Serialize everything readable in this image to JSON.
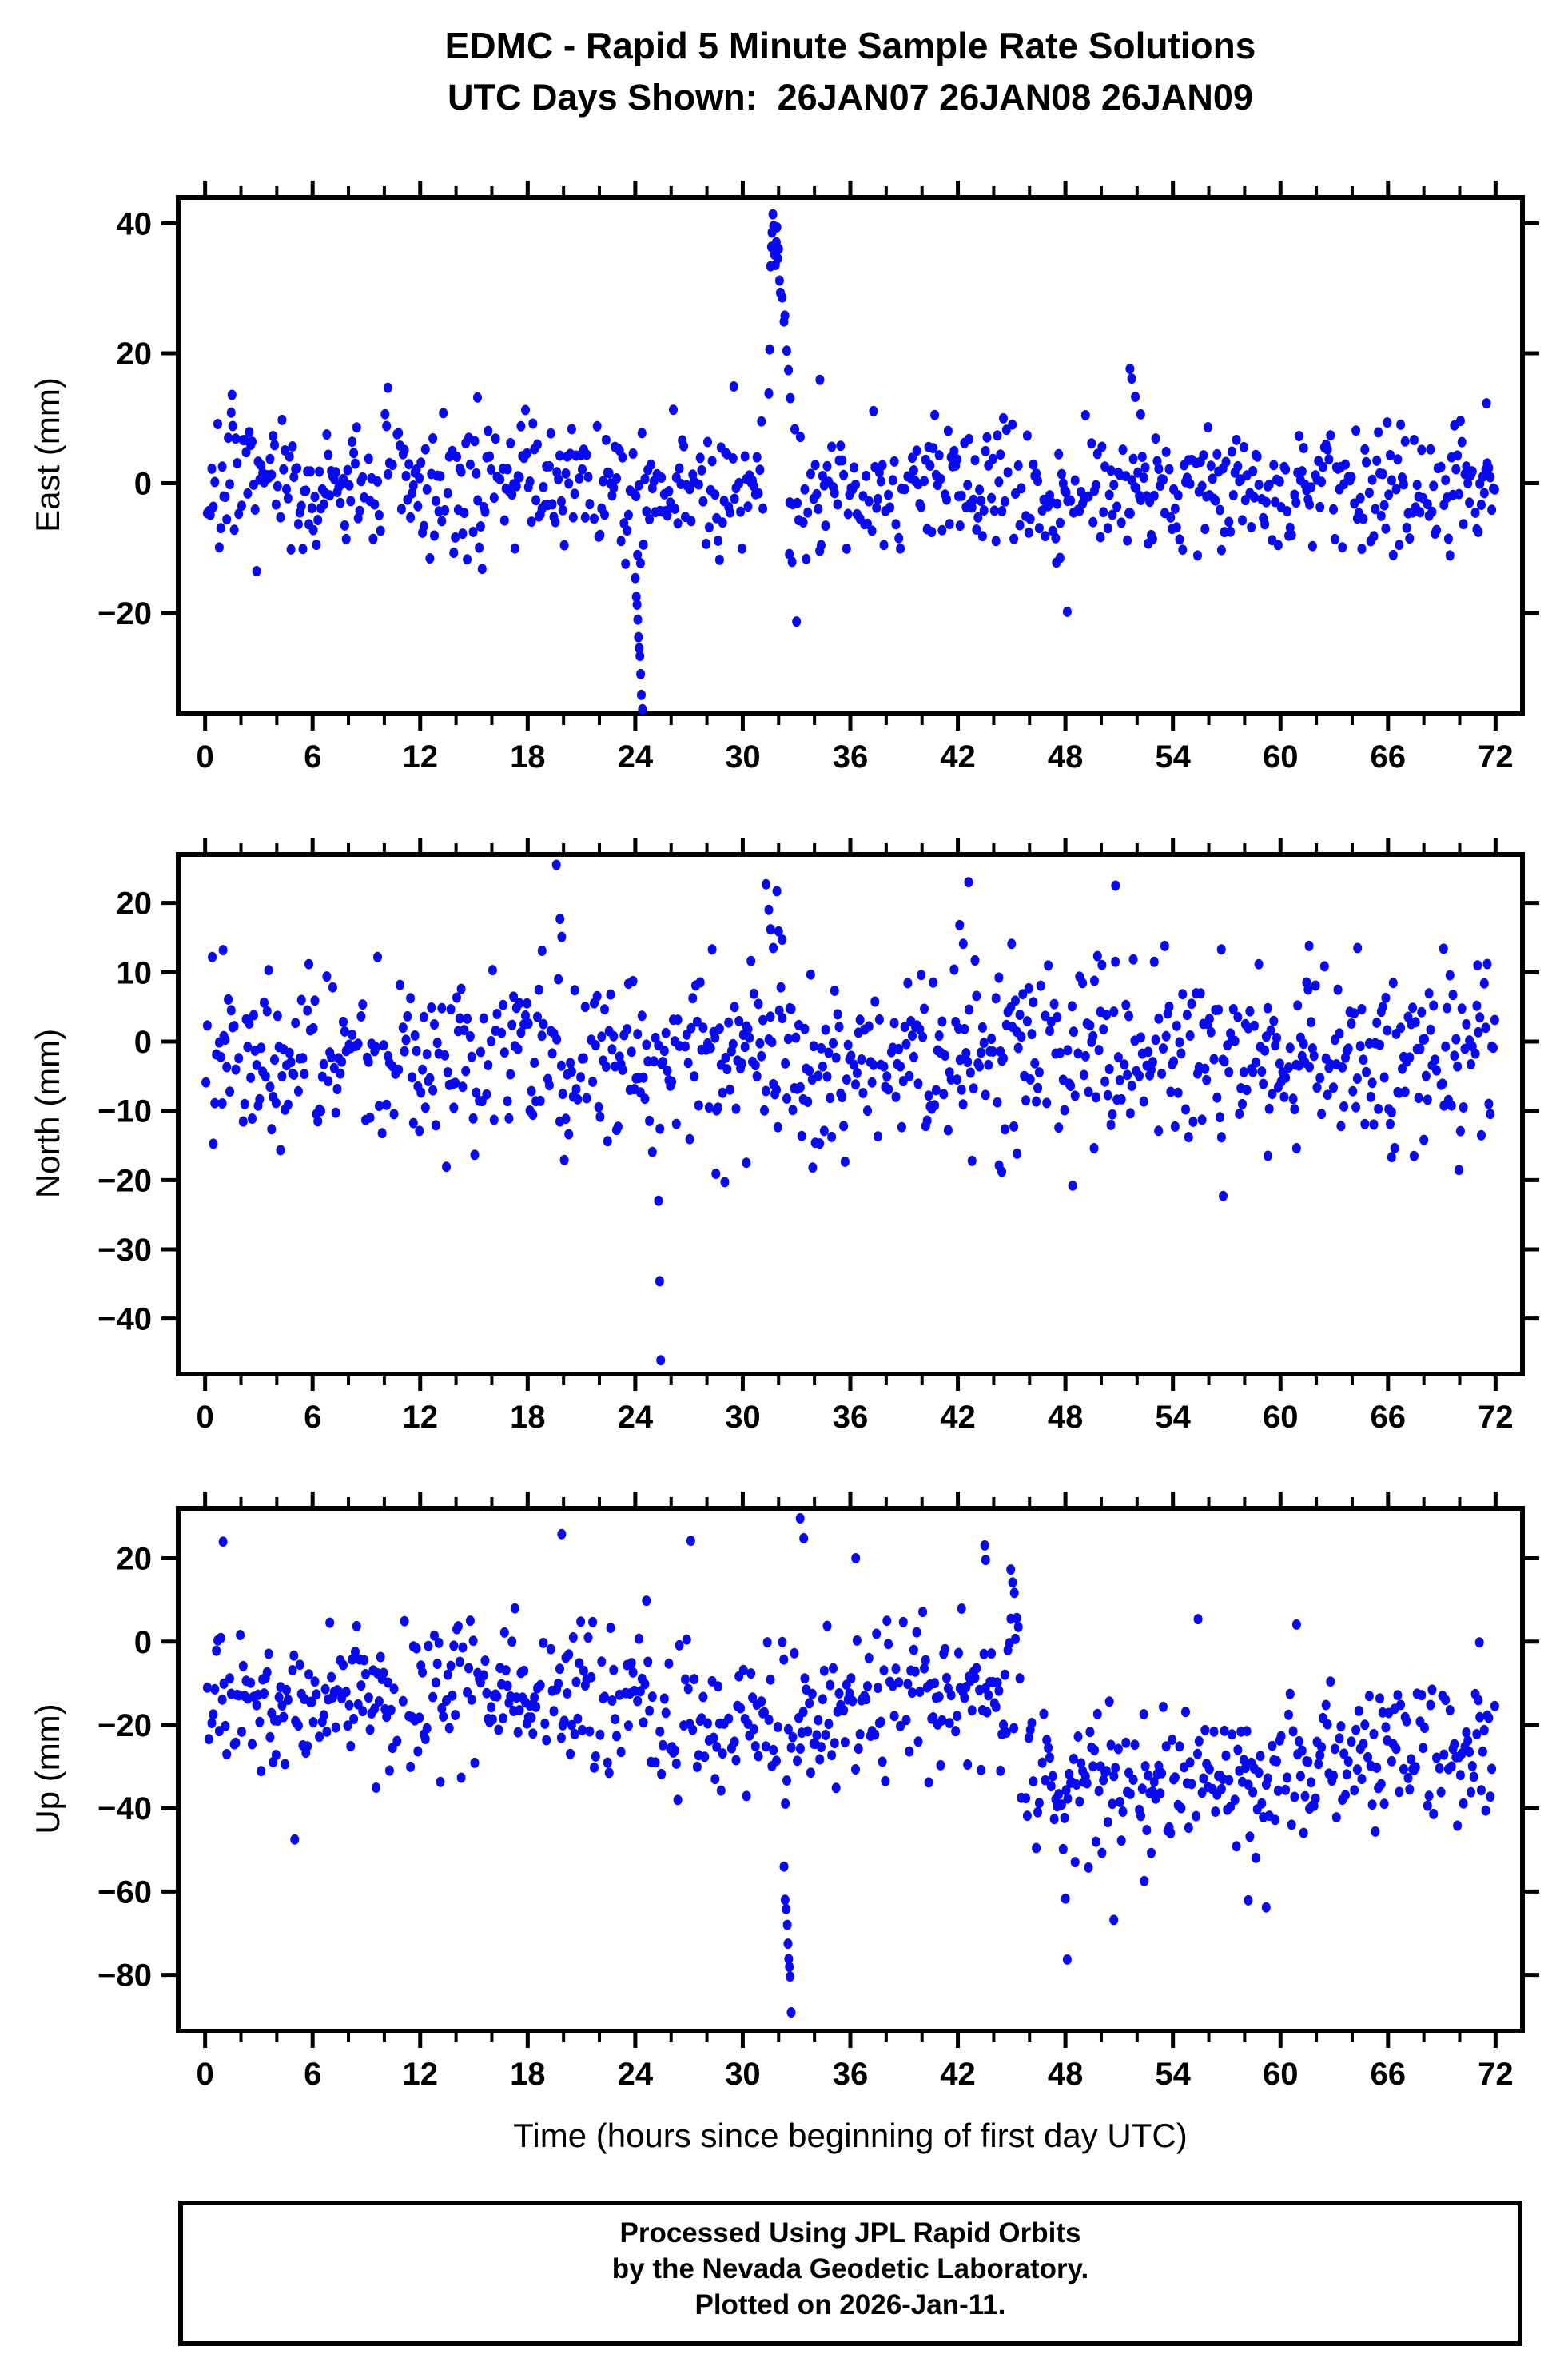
{
  "title": "EDMC - Rapid 5 Minute Sample Rate Solutions",
  "subtitle": "UTC Days Shown:  26JAN07 26JAN08 26JAN09",
  "caption": {
    "line1": "Processed Using JPL Rapid Orbits",
    "line2": "by the Nevada Geodetic Laboratory.",
    "line3": "Plotted on 2026-Jan-11."
  },
  "marker": {
    "color": "#0a0af0",
    "rx": 5.5,
    "ry": 6.5
  },
  "frame_color": "#000000",
  "chart_data": {
    "type": "scatter",
    "title": "EDMC - Rapid 5 Minute Sample Rate Solutions",
    "subtitle": "UTC Days Shown:  26JAN07 26JAN08 26JAN09",
    "xlabel": "Time (hours since beginning of first day UTC)",
    "x_axis": {
      "min": 0,
      "max": 72,
      "major_step": 6,
      "minor_step": 2,
      "tick_labels": [
        0,
        6,
        12,
        18,
        24,
        30,
        36,
        42,
        48,
        54,
        60,
        66,
        72
      ]
    },
    "sample_interval_hours": 0.08333,
    "legend": "none",
    "grid": false,
    "panels": [
      {
        "name": "east",
        "ylabel": "East (mm)",
        "ylim": [
          -35.5,
          44.0
        ],
        "yticks": [
          -20,
          0,
          20,
          40
        ],
        "seed": 7,
        "dropout": 0.1,
        "baseline": [
          {
            "x0": 0,
            "x1": 72.01,
            "mean": -0.8,
            "sigma": 4.9
          }
        ],
        "gaps": [
          [
            31.2,
            32.55
          ]
        ],
        "outliers": [
          [
            1.5,
            13.6
          ],
          [
            10.2,
            14.7
          ],
          [
            15.2,
            13.2
          ],
          [
            29.5,
            14.9
          ],
          [
            34.3,
            15.9
          ],
          [
            24.0,
            -14.6
          ],
          [
            24.06,
            -17.5
          ],
          [
            24.1,
            -18.7
          ],
          [
            24.14,
            -21.0
          ],
          [
            24.18,
            -23.7
          ],
          [
            24.22,
            -25.4
          ],
          [
            24.26,
            -26.6
          ],
          [
            24.3,
            -29.4
          ],
          [
            24.34,
            -32.6
          ],
          [
            24.4,
            -34.8
          ],
          [
            31.45,
            13.8
          ],
          [
            31.5,
            20.6
          ],
          [
            31.55,
            33.4
          ],
          [
            31.6,
            36.4
          ],
          [
            31.63,
            38.6
          ],
          [
            31.68,
            41.4
          ],
          [
            31.72,
            39.6
          ],
          [
            31.77,
            35.2
          ],
          [
            31.82,
            33.6
          ],
          [
            31.87,
            37.1
          ],
          [
            31.9,
            39.4
          ],
          [
            31.95,
            34.6
          ],
          [
            32.0,
            36.1
          ],
          [
            32.05,
            31.2
          ],
          [
            32.1,
            29.3
          ],
          [
            32.2,
            28.6
          ],
          [
            32.3,
            24.9
          ],
          [
            32.35,
            25.8
          ],
          [
            32.45,
            20.4
          ],
          [
            32.55,
            17.4
          ],
          [
            32.65,
            13.1
          ],
          [
            32.9,
            8.3
          ],
          [
            32.6,
            -10.9
          ],
          [
            32.75,
            -12.1
          ],
          [
            33.0,
            -21.3
          ],
          [
            47.5,
            -12.2
          ],
          [
            47.7,
            -11.5
          ],
          [
            48.1,
            -19.8
          ],
          [
            51.6,
            17.6
          ],
          [
            51.7,
            16.1
          ],
          [
            51.9,
            13.3
          ],
          [
            52.2,
            10.6
          ],
          [
            71.5,
            12.3
          ]
        ]
      },
      {
        "name": "north",
        "ylabel": "North (mm)",
        "ylim": [
          -48.0,
          27.0
        ],
        "yticks": [
          -40,
          -30,
          -20,
          -10,
          0,
          10,
          20
        ],
        "seed": 15,
        "dropout": 0.1,
        "baseline": [
          {
            "x0": 0,
            "x1": 37,
            "mean": -2.8,
            "sigma": 6.3
          },
          {
            "x0": 37,
            "x1": 72.01,
            "mean": -2.2,
            "sigma": 6.1
          }
        ],
        "gaps": [],
        "outliers": [
          [
            0.4,
            12.2
          ],
          [
            1.0,
            13.2
          ],
          [
            18.8,
            13.1
          ],
          [
            19.6,
            25.5
          ],
          [
            19.8,
            17.7
          ],
          [
            19.9,
            15.1
          ],
          [
            25.3,
            -23.0
          ],
          [
            25.36,
            -34.6
          ],
          [
            25.42,
            -46.0
          ],
          [
            28.5,
            -19.1
          ],
          [
            29.0,
            -20.3
          ],
          [
            30.2,
            -17.5
          ],
          [
            33.9,
            -18.2
          ],
          [
            31.3,
            22.7
          ],
          [
            31.45,
            19.0
          ],
          [
            31.55,
            16.2
          ],
          [
            31.7,
            13.5
          ],
          [
            31.9,
            21.7
          ],
          [
            32.0,
            15.9
          ],
          [
            32.2,
            14.7
          ],
          [
            42.6,
            23.0
          ],
          [
            50.8,
            22.5
          ],
          [
            42.1,
            16.8
          ],
          [
            42.3,
            14.1
          ],
          [
            45.0,
            14.1
          ],
          [
            56.7,
            13.3
          ],
          [
            61.6,
            13.8
          ],
          [
            64.3,
            13.5
          ],
          [
            69.1,
            13.4
          ],
          [
            71.0,
            11.0
          ],
          [
            44.3,
            -17.9
          ],
          [
            44.45,
            -18.8
          ],
          [
            45.3,
            -16.2
          ],
          [
            48.4,
            -20.8
          ],
          [
            49.6,
            -15.4
          ],
          [
            53.2,
            -12.9
          ],
          [
            56.8,
            -22.3
          ],
          [
            59.3,
            -16.5
          ],
          [
            60.9,
            -15.4
          ],
          [
            66.2,
            -16.7
          ],
          [
            68.0,
            -14.2
          ]
        ]
      },
      {
        "name": "up",
        "ylabel": "Up (mm)",
        "ylim": [
          -93.5,
          32.0
        ],
        "yticks": [
          -80,
          -60,
          -40,
          -20,
          0,
          20
        ],
        "seed": 23,
        "dropout": 0.1,
        "baseline": [
          {
            "x0": 0,
            "x1": 8,
            "mean": -14.0,
            "sigma": 8.2
          },
          {
            "x0": 8,
            "x1": 20,
            "mean": -12.5,
            "sigma": 8.6
          },
          {
            "x0": 20,
            "x1": 26,
            "mean": -16.0,
            "sigma": 9.2
          },
          {
            "x0": 26,
            "x1": 33,
            "mean": -18.0,
            "sigma": 9.5
          },
          {
            "x0": 33,
            "x1": 38,
            "mean": -14.5,
            "sigma": 9.0
          },
          {
            "x0": 38,
            "x1": 45.5,
            "mean": -11.0,
            "sigma": 8.0
          },
          {
            "x0": 45.5,
            "x1": 62,
            "mean": -33.0,
            "sigma": 8.6
          },
          {
            "x0": 62,
            "x1": 72.01,
            "mean": -26.5,
            "sigma": 7.6
          }
        ],
        "gaps": [],
        "outliers": [
          [
            1.0,
            24.0
          ],
          [
            5.0,
            -47.5
          ],
          [
            19.9,
            25.8
          ],
          [
            27.1,
            24.2
          ],
          [
            33.2,
            29.6
          ],
          [
            33.4,
            24.8
          ],
          [
            36.3,
            20.0
          ],
          [
            32.3,
            -54.0
          ],
          [
            32.36,
            -62.0
          ],
          [
            32.42,
            -64.2
          ],
          [
            32.48,
            -68.0
          ],
          [
            32.52,
            -72.5
          ],
          [
            32.56,
            -76.2
          ],
          [
            32.6,
            -78.1
          ],
          [
            32.64,
            -80.4
          ],
          [
            32.7,
            -89.0
          ],
          [
            43.5,
            23.1
          ],
          [
            43.55,
            19.6
          ],
          [
            44.95,
            17.3
          ],
          [
            45.05,
            14.2
          ],
          [
            45.15,
            11.7
          ],
          [
            48.0,
            -61.7
          ],
          [
            48.1,
            -76.3
          ],
          [
            50.7,
            -66.8
          ],
          [
            52.4,
            -57.5
          ],
          [
            58.2,
            -62.1
          ],
          [
            59.2,
            -63.8
          ],
          [
            55.4,
            5.4
          ],
          [
            60.9,
            4.1
          ],
          [
            71.1,
            -0.2
          ]
        ]
      }
    ]
  }
}
